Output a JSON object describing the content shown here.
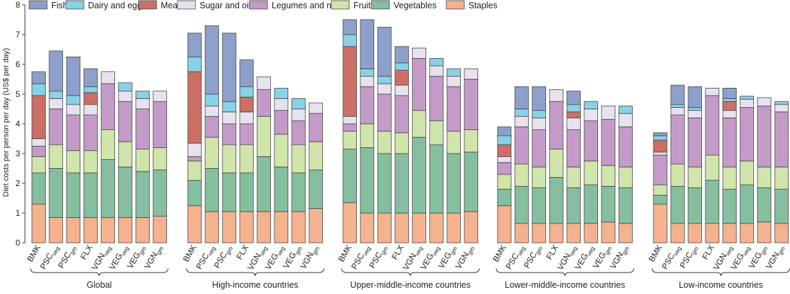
{
  "chart_data": {
    "type": "bar",
    "stacked": true,
    "ylabel": "Diet costs per person per day (US$ per day)",
    "ylim": [
      0,
      8
    ],
    "yticks": [
      0,
      1,
      2,
      3,
      4,
      5,
      6,
      7,
      8
    ],
    "legend_position": "top",
    "categories": [
      {
        "main": "BMK",
        "sub": ""
      },
      {
        "main": "PSC",
        "sub": "veg"
      },
      {
        "main": "PSC",
        "sub": "gm"
      },
      {
        "main": "FLX",
        "sub": ""
      },
      {
        "main": "VGN",
        "sub": "veg"
      },
      {
        "main": "VEG",
        "sub": "veg"
      },
      {
        "main": "VEG",
        "sub": "gm"
      },
      {
        "main": "VGN",
        "sub": "gm"
      }
    ],
    "stack_order": [
      "Staples",
      "Vegetables",
      "Fruits",
      "Legumes and nuts",
      "Sugar and oils",
      "Meat",
      "Dairy and eggs",
      "Fish"
    ],
    "legend": [
      {
        "name": "Fish",
        "color": "#8da0cb"
      },
      {
        "name": "Dairy and eggs",
        "color": "#88d1e6"
      },
      {
        "name": "Meat",
        "color": "#cc6f66"
      },
      {
        "name": "Sugar and oils",
        "color": "#e8e1ee"
      },
      {
        "name": "Legumes and nuts",
        "color": "#c49bc8"
      },
      {
        "name": "Fruits",
        "color": "#cfe5a9"
      },
      {
        "name": "Vegetables",
        "color": "#86bea0"
      },
      {
        "name": "Staples",
        "color": "#f5b28e"
      }
    ],
    "groups": [
      {
        "name": "Global",
        "bars": [
          {
            "Staples": 1.3,
            "Vegetables": 1.05,
            "Fruits": 0.55,
            "Legumes and nuts": 0.35,
            "Sugar and oils": 0.25,
            "Meat": 1.45,
            "Dairy and eggs": 0.4,
            "Fish": 0.4
          },
          {
            "Staples": 0.85,
            "Vegetables": 1.65,
            "Fruits": 0.8,
            "Legumes and nuts": 1.2,
            "Sugar and oils": 0.35,
            "Meat": 0.0,
            "Dairy and eggs": 0.25,
            "Fish": 1.35
          },
          {
            "Staples": 0.85,
            "Vegetables": 1.5,
            "Fruits": 0.75,
            "Legumes and nuts": 1.2,
            "Sugar and oils": 0.35,
            "Meat": 0.0,
            "Dairy and eggs": 0.3,
            "Fish": 1.3
          },
          {
            "Staples": 0.85,
            "Vegetables": 1.5,
            "Fruits": 0.75,
            "Legumes and nuts": 1.2,
            "Sugar and oils": 0.35,
            "Meat": 0.4,
            "Dairy and eggs": 0.2,
            "Fish": 0.6
          },
          {
            "Staples": 0.85,
            "Vegetables": 1.95,
            "Fruits": 1.0,
            "Legumes and nuts": 1.55,
            "Sugar and oils": 0.4,
            "Meat": 0.0,
            "Dairy and eggs": 0.0,
            "Fish": 0.0
          },
          {
            "Staples": 0.85,
            "Vegetables": 1.7,
            "Fruits": 0.85,
            "Legumes and nuts": 1.35,
            "Sugar and oils": 0.35,
            "Meat": 0.0,
            "Dairy and eggs": 0.28,
            "Fish": 0.0
          },
          {
            "Staples": 0.85,
            "Vegetables": 1.55,
            "Fruits": 0.75,
            "Legumes and nuts": 1.35,
            "Sugar and oils": 0.35,
            "Meat": 0.0,
            "Dairy and eggs": 0.25,
            "Fish": 0.0
          },
          {
            "Staples": 0.9,
            "Vegetables": 1.55,
            "Fruits": 0.75,
            "Legumes and nuts": 1.55,
            "Sugar and oils": 0.35,
            "Meat": 0.0,
            "Dairy and eggs": 0.0,
            "Fish": 0.0
          }
        ]
      },
      {
        "name": "High-income countries",
        "bars": [
          {
            "Staples": 1.25,
            "Vegetables": 0.85,
            "Fruits": 0.65,
            "Legumes and nuts": 0.15,
            "Sugar and oils": 0.45,
            "Meat": 2.4,
            "Dairy and eggs": 0.5,
            "Fish": 0.8
          },
          {
            "Staples": 1.05,
            "Vegetables": 1.45,
            "Fruits": 1.05,
            "Legumes and nuts": 0.7,
            "Sugar and oils": 0.35,
            "Meat": 0.0,
            "Dairy and eggs": 0.4,
            "Fish": 2.3
          },
          {
            "Staples": 1.05,
            "Vegetables": 1.3,
            "Fruits": 0.95,
            "Legumes and nuts": 0.7,
            "Sugar and oils": 0.4,
            "Meat": 0.0,
            "Dairy and eggs": 0.35,
            "Fish": 2.3
          },
          {
            "Staples": 1.05,
            "Vegetables": 1.3,
            "Fruits": 0.95,
            "Legumes and nuts": 0.7,
            "Sugar and oils": 0.4,
            "Meat": 0.5,
            "Dairy and eggs": 0.35,
            "Fish": 0.9
          },
          {
            "Staples": 1.05,
            "Vegetables": 1.85,
            "Fruits": 1.35,
            "Legumes and nuts": 0.9,
            "Sugar and oils": 0.43,
            "Meat": 0.0,
            "Dairy and eggs": 0.0,
            "Fish": 0.0
          },
          {
            "Staples": 1.05,
            "Vegetables": 1.5,
            "Fruits": 1.1,
            "Legumes and nuts": 0.8,
            "Sugar and oils": 0.4,
            "Meat": 0.0,
            "Dairy and eggs": 0.35,
            "Fish": 0.0
          },
          {
            "Staples": 1.05,
            "Vegetables": 1.3,
            "Fruits": 0.95,
            "Legumes and nuts": 0.8,
            "Sugar and oils": 0.4,
            "Meat": 0.0,
            "Dairy and eggs": 0.35,
            "Fish": 0.0
          },
          {
            "Staples": 1.15,
            "Vegetables": 1.3,
            "Fruits": 0.95,
            "Legumes and nuts": 0.95,
            "Sugar and oils": 0.35,
            "Meat": 0.0,
            "Dairy and eggs": 0.0,
            "Fish": 0.0
          }
        ]
      },
      {
        "name": "Upper-middle-income countries",
        "bars": [
          {
            "Staples": 1.35,
            "Vegetables": 1.8,
            "Fruits": 0.6,
            "Legumes and nuts": 0.25,
            "Sugar and oils": 0.25,
            "Meat": 2.35,
            "Dairy and eggs": 0.4,
            "Fish": 0.5
          },
          {
            "Staples": 1.0,
            "Vegetables": 2.2,
            "Fruits": 0.8,
            "Legumes and nuts": 1.25,
            "Sugar and oils": 0.35,
            "Meat": 0.0,
            "Dairy and eggs": 0.25,
            "Fish": 1.65
          },
          {
            "Staples": 1.0,
            "Vegetables": 2.0,
            "Fruits": 0.75,
            "Legumes and nuts": 1.25,
            "Sugar and oils": 0.35,
            "Meat": 0.0,
            "Dairy and eggs": 0.25,
            "Fish": 1.65
          },
          {
            "Staples": 1.0,
            "Vegetables": 2.0,
            "Fruits": 0.7,
            "Legumes and nuts": 1.25,
            "Sugar and oils": 0.35,
            "Meat": 0.5,
            "Dairy and eggs": 0.25,
            "Fish": 0.55
          },
          {
            "Staples": 1.0,
            "Vegetables": 2.55,
            "Fruits": 0.9,
            "Legumes and nuts": 1.75,
            "Sugar and oils": 0.35,
            "Meat": 0.0,
            "Dairy and eggs": 0.0,
            "Fish": 0.0
          },
          {
            "Staples": 1.0,
            "Vegetables": 2.3,
            "Fruits": 0.8,
            "Legumes and nuts": 1.5,
            "Sugar and oils": 0.35,
            "Meat": 0.0,
            "Dairy and eggs": 0.25,
            "Fish": 0.0
          },
          {
            "Staples": 1.0,
            "Vegetables": 2.0,
            "Fruits": 0.75,
            "Legumes and nuts": 1.5,
            "Sugar and oils": 0.35,
            "Meat": 0.0,
            "Dairy and eggs": 0.25,
            "Fish": 0.0
          },
          {
            "Staples": 1.05,
            "Vegetables": 2.0,
            "Fruits": 0.75,
            "Legumes and nuts": 1.7,
            "Sugar and oils": 0.35,
            "Meat": 0.0,
            "Dairy and eggs": 0.0,
            "Fish": 0.0
          }
        ]
      },
      {
        "name": "Lower-middle-income countries",
        "bars": [
          {
            "Staples": 1.25,
            "Vegetables": 0.55,
            "Fruits": 0.5,
            "Legumes and nuts": 0.4,
            "Sugar and oils": 0.2,
            "Meat": 0.4,
            "Dairy and eggs": 0.3,
            "Fish": 0.3
          },
          {
            "Staples": 0.65,
            "Vegetables": 1.25,
            "Fruits": 0.75,
            "Legumes and nuts": 1.25,
            "Sugar and oils": 0.35,
            "Meat": 0.0,
            "Dairy and eggs": 0.25,
            "Fish": 0.75
          },
          {
            "Staples": 0.65,
            "Vegetables": 1.2,
            "Fruits": 0.7,
            "Legumes and nuts": 1.25,
            "Sugar and oils": 0.4,
            "Meat": 0.0,
            "Dairy and eggs": 0.25,
            "Fish": 0.8
          },
          {
            "Staples": 0.65,
            "Vegetables": 1.55,
            "Fruits": 0.95,
            "Legumes and nuts": 1.6,
            "Sugar and oils": 0.4,
            "Meat": 0.0,
            "Dairy and eggs": 0.0,
            "Fish": 0.0
          },
          {
            "Staples": 0.65,
            "Vegetables": 1.2,
            "Fruits": 0.7,
            "Legumes and nuts": 1.25,
            "Sugar and oils": 0.4,
            "Meat": 0.2,
            "Dairy and eggs": 0.25,
            "Fish": 0.45
          },
          {
            "Staples": 0.65,
            "Vegetables": 1.3,
            "Fruits": 0.8,
            "Legumes and nuts": 1.35,
            "Sugar and oils": 0.4,
            "Meat": 0.0,
            "Dairy and eggs": 0.25,
            "Fish": 0.0
          },
          {
            "Staples": 0.7,
            "Vegetables": 1.2,
            "Fruits": 0.7,
            "Legumes and nuts": 1.55,
            "Sugar and oils": 0.45,
            "Meat": 0.0,
            "Dairy and eggs": 0.0,
            "Fish": 0.0
          },
          {
            "Staples": 0.65,
            "Vegetables": 1.2,
            "Fruits": 0.7,
            "Legumes and nuts": 1.35,
            "Sugar and oils": 0.45,
            "Meat": 0.0,
            "Dairy and eggs": 0.25,
            "Fish": 0.0
          }
        ]
      },
      {
        "name": "Low-income countries",
        "bars": [
          {
            "Staples": 1.3,
            "Vegetables": 0.3,
            "Fruits": 0.35,
            "Legumes and nuts": 1.0,
            "Sugar and oils": 0.1,
            "Meat": 0.4,
            "Dairy and eggs": 0.15,
            "Fish": 0.1
          },
          {
            "Staples": 0.65,
            "Vegetables": 1.25,
            "Fruits": 0.75,
            "Legumes and nuts": 1.65,
            "Sugar and oils": 0.25,
            "Meat": 0.0,
            "Dairy and eggs": 0.1,
            "Fish": 0.65
          },
          {
            "Staples": 0.65,
            "Vegetables": 1.2,
            "Fruits": 0.7,
            "Legumes and nuts": 1.65,
            "Sugar and oils": 0.25,
            "Meat": 0.0,
            "Dairy and eggs": 0.1,
            "Fish": 0.7
          },
          {
            "Staples": 0.65,
            "Vegetables": 1.45,
            "Fruits": 0.85,
            "Legumes and nuts": 2.0,
            "Sugar and oils": 0.25,
            "Meat": 0.0,
            "Dairy and eggs": 0.0,
            "Fish": 0.0
          },
          {
            "Staples": 0.65,
            "Vegetables": 1.15,
            "Fruits": 0.75,
            "Legumes and nuts": 1.65,
            "Sugar and oils": 0.25,
            "Meat": 0.3,
            "Dairy and eggs": 0.1,
            "Fish": 0.35
          },
          {
            "Staples": 0.65,
            "Vegetables": 1.3,
            "Fruits": 0.8,
            "Legumes and nuts": 1.8,
            "Sugar and oils": 0.28,
            "Meat": 0.0,
            "Dairy and eggs": 0.1,
            "Fish": 0.0
          },
          {
            "Staples": 0.7,
            "Vegetables": 1.15,
            "Fruits": 0.7,
            "Legumes and nuts": 2.05,
            "Sugar and oils": 0.28,
            "Meat": 0.0,
            "Dairy and eggs": 0.0,
            "Fish": 0.0
          },
          {
            "Staples": 0.65,
            "Vegetables": 1.15,
            "Fruits": 0.75,
            "Legumes and nuts": 1.85,
            "Sugar and oils": 0.25,
            "Meat": 0.0,
            "Dairy and eggs": 0.1,
            "Fish": 0.0
          }
        ]
      }
    ]
  }
}
